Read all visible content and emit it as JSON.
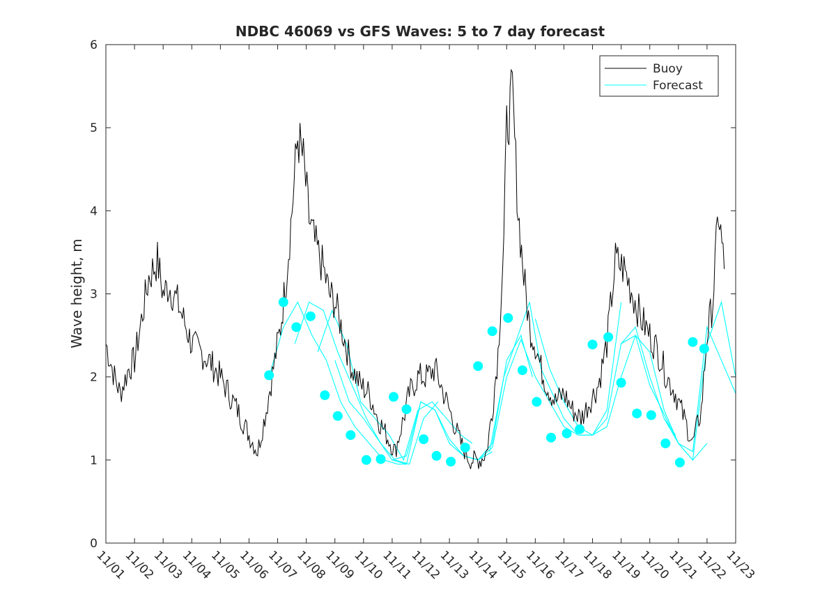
{
  "chart_data": {
    "type": "line",
    "title": "NDBC 46069 vs GFS Waves: 5 to 7 day forecast",
    "xlabel": "",
    "ylabel": "Wave height, m",
    "ylim": [
      0,
      6
    ],
    "xlim": [
      0,
      22
    ],
    "y_ticks": [
      "0",
      "1",
      "2",
      "3",
      "4",
      "5",
      "6"
    ],
    "x_tick_labels": [
      "11/01",
      "11/02",
      "11/03",
      "11/04",
      "11/05",
      "11/06",
      "11/07",
      "11/08",
      "11/09",
      "11/10",
      "11/11",
      "11/12",
      "11/13",
      "11/14",
      "11/15",
      "11/16",
      "11/17",
      "11/18",
      "11/19",
      "11/20",
      "11/21",
      "11/22",
      "11/23"
    ],
    "legend": {
      "position": "top-right",
      "entries": [
        "Buoy",
        "Forecast"
      ]
    },
    "colors": {
      "buoy": "#000000",
      "forecast": "#00ffff"
    },
    "buoy": {
      "name": "Buoy",
      "x": [
        0,
        0.3,
        0.5,
        0.8,
        1.0,
        1.2,
        1.5,
        1.8,
        2.0,
        2.2,
        2.5,
        2.8,
        3.0,
        3.3,
        3.6,
        4.0,
        4.3,
        4.6,
        5.0,
        5.3,
        5.6,
        5.9,
        6.1,
        6.3,
        6.5,
        6.7,
        6.9,
        7.1,
        7.3,
        7.6,
        7.8,
        8.0,
        8.3,
        8.6,
        8.9,
        9.2,
        9.5,
        9.8,
        10.1,
        10.4,
        10.6,
        10.9,
        11.2,
        11.5,
        11.8,
        12.1,
        12.4,
        12.7,
        12.9,
        13.1,
        13.3,
        13.5,
        13.7,
        13.9,
        14.0,
        14.2,
        14.4,
        14.6,
        14.8,
        15.0,
        15.2,
        15.4,
        15.7,
        16.0,
        16.3,
        16.6,
        16.9,
        17.2,
        17.5,
        17.8,
        18.1,
        18.4,
        18.7,
        19.0,
        19.3,
        19.6,
        19.9,
        20.2,
        20.5,
        20.8,
        21.0,
        21.2,
        21.4,
        21.6
      ],
      "y": [
        2.4,
        2.0,
        1.8,
        2.1,
        2.2,
        2.6,
        3.2,
        3.4,
        3.0,
        3.1,
        2.9,
        2.6,
        2.4,
        2.3,
        2.2,
        2.0,
        1.8,
        1.6,
        1.3,
        1.1,
        1.6,
        2.2,
        2.6,
        3.2,
        4.0,
        4.9,
        4.6,
        3.9,
        3.6,
        3.3,
        3.0,
        2.9,
        2.5,
        2.1,
        1.9,
        1.8,
        1.5,
        1.3,
        1.1,
        1.5,
        1.8,
        2.0,
        2.0,
        2.1,
        1.8,
        1.5,
        1.2,
        1.0,
        1.0,
        1.0,
        1.1,
        1.6,
        2.3,
        3.6,
        5.0,
        5.4,
        4.0,
        3.2,
        2.6,
        2.4,
        2.1,
        1.9,
        1.7,
        1.8,
        1.6,
        1.5,
        1.7,
        1.9,
        2.4,
        3.4,
        3.3,
        3.0,
        2.7,
        2.5,
        2.3,
        2.0,
        1.8,
        1.5,
        1.2,
        1.6,
        2.5,
        2.9,
        4.0,
        3.3
      ]
    },
    "forecast_series": [
      {
        "x": [
          5.7,
          6.2,
          6.7,
          7.2,
          7.7,
          8.2,
          8.7,
          9.2,
          9.7,
          10.2,
          10.5
        ],
        "y": [
          2.0,
          2.6,
          2.9,
          2.5,
          2.2,
          1.7,
          1.4,
          1.2,
          1.0,
          0.95,
          0.95
        ]
      },
      {
        "x": [
          6.6,
          7.1,
          7.6,
          8.1,
          8.6,
          9.1,
          9.6,
          10.1,
          10.6,
          11.1,
          11.6
        ],
        "y": [
          2.4,
          2.9,
          2.8,
          2.3,
          1.9,
          1.5,
          1.2,
          1.0,
          0.95,
          1.5,
          1.7
        ]
      },
      {
        "x": [
          7.4,
          7.9,
          8.4,
          8.9,
          9.4,
          9.9,
          10.4,
          10.9,
          11.4,
          11.9,
          12.4,
          12.8
        ],
        "y": [
          2.3,
          2.8,
          2.4,
          1.7,
          1.5,
          1.3,
          1.0,
          1.6,
          1.7,
          1.5,
          1.3,
          1.2
        ]
      },
      {
        "x": [
          8.0,
          8.5,
          9.0,
          9.5,
          10.0,
          10.5,
          11.0,
          11.5,
          12.0,
          12.5,
          13.0,
          13.5
        ],
        "y": [
          2.2,
          1.7,
          1.5,
          1.25,
          1.0,
          0.95,
          1.7,
          1.6,
          1.2,
          1.05,
          1.0,
          1.1
        ]
      },
      {
        "x": [
          10.0,
          10.5,
          11.0,
          11.5,
          12.0,
          12.5,
          13.0,
          13.5,
          14.0,
          14.5,
          14.9
        ],
        "y": [
          1.0,
          1.05,
          1.7,
          1.6,
          1.25,
          1.05,
          1.0,
          1.2,
          2.2,
          2.5,
          2.0
        ]
      },
      {
        "x": [
          12.0,
          12.5,
          13.0,
          13.5,
          14.0,
          14.5,
          15.0,
          15.5,
          16.0,
          16.5,
          17.0
        ],
        "y": [
          1.2,
          1.05,
          1.0,
          1.15,
          2.0,
          2.45,
          2.0,
          1.7,
          1.4,
          1.3,
          1.3
        ]
      },
      {
        "x": [
          13.4,
          13.9,
          14.4,
          14.8,
          15.2,
          15.6,
          16.0,
          16.5,
          17.0,
          17.5,
          18.0
        ],
        "y": [
          1.1,
          2.0,
          2.5,
          2.9,
          2.1,
          1.8,
          1.5,
          1.3,
          1.3,
          1.6,
          2.9
        ]
      },
      {
        "x": [
          15.0,
          15.5,
          16.0,
          16.5,
          17.0,
          17.5,
          18.0,
          18.5,
          19.0,
          19.5,
          19.9
        ],
        "y": [
          2.7,
          2.1,
          1.7,
          1.4,
          1.3,
          1.5,
          2.4,
          2.6,
          2.0,
          1.5,
          1.3
        ]
      },
      {
        "x": [
          16.5,
          17.0,
          17.5,
          18.0,
          18.5,
          19.0,
          19.5,
          20.0,
          20.5,
          21.0
        ],
        "y": [
          1.3,
          1.3,
          1.4,
          2.0,
          2.5,
          2.3,
          1.6,
          1.2,
          1.0,
          1.2
        ]
      },
      {
        "x": [
          18.0,
          18.5,
          19.0,
          19.5,
          20.0,
          20.5,
          21.0,
          21.5,
          22.0
        ],
        "y": [
          2.4,
          2.5,
          1.9,
          1.55,
          1.2,
          1.0,
          2.4,
          2.9,
          2.0
        ]
      },
      {
        "x": [
          19.5,
          20.0,
          20.5,
          21.0,
          21.5,
          22.0
        ],
        "y": [
          1.5,
          1.2,
          1.1,
          2.6,
          2.2,
          1.8
        ]
      }
    ],
    "forecast_markers": {
      "x": [
        5.7,
        6.2,
        6.65,
        7.15,
        7.65,
        8.1,
        8.55,
        9.1,
        9.6,
        10.05,
        10.5,
        11.1,
        11.55,
        12.05,
        12.55,
        13.0,
        13.5,
        14.05,
        14.55,
        15.05,
        15.55,
        16.1,
        16.55,
        17.0,
        17.55,
        18.0,
        18.55,
        19.05,
        19.55,
        20.05,
        20.5,
        20.9
      ],
      "y": [
        2.02,
        2.9,
        2.6,
        2.73,
        1.78,
        1.53,
        1.3,
        1.0,
        1.01,
        1.76,
        1.61,
        1.25,
        1.05,
        0.98,
        1.15,
        2.13,
        2.55,
        2.71,
        2.08,
        1.7,
        1.27,
        1.32,
        1.37,
        2.39,
        2.48,
        1.93,
        1.56,
        1.54,
        1.2,
        0.97,
        2.42,
        2.34
      ]
    }
  }
}
